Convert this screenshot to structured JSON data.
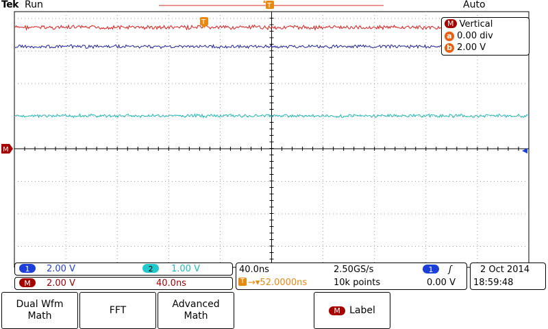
{
  "header": {
    "brand": "Tek",
    "run_state": "Run",
    "trigger_mode": "Auto"
  },
  "math_vertical": {
    "badge": "M",
    "title": "Vertical",
    "a_label": "a",
    "a_value": "0.00 div",
    "b_label": "b",
    "b_value": "2.00 V"
  },
  "markers": {
    "trigger_position": "T",
    "math_ground": "M"
  },
  "channels": {
    "ch1_label": "1",
    "ch1_scale": "2.00 V",
    "ch2_label": "2",
    "ch2_scale": "1.00 V",
    "math_label": "M",
    "math_scale": "2.00 V",
    "math_time": "40.0ns"
  },
  "timebase": {
    "scale": "40.0ns",
    "sample_rate": "2.50GS/s",
    "trigger_channel": "1",
    "trigger_slope": "ʃ",
    "position_icon": "T",
    "position": "→▾52.0000ns",
    "record_length": "10k points",
    "trigger_level": "0.00 V"
  },
  "datetime": {
    "date": "2 Oct  2014",
    "time": "18:59:48"
  },
  "softkeys": {
    "dual_wfm_math": "Dual Wfm\nMath",
    "fft": "FFT",
    "advanced_math": "Advanced\nMath",
    "label_badge": "M",
    "label": "Label"
  },
  "colors": {
    "red_trace": "#e01818",
    "blue_trace": "#1b1f9a",
    "cyan_trace": "#20b8b8",
    "orange": "#e88a10",
    "math_red": "#a50000"
  }
}
